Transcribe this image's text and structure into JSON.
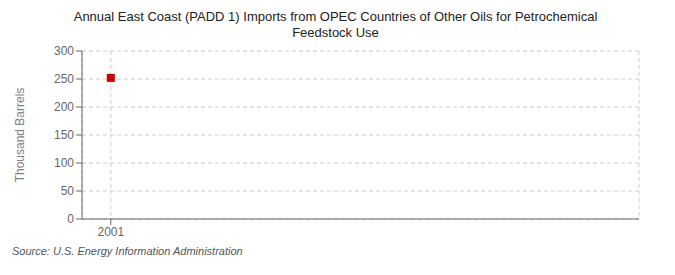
{
  "chart_data": {
    "type": "scatter",
    "title": "Annual East Coast (PADD 1) Imports from OPEC Countries of Other Oils for Petrochemical\nFeedstock Use",
    "ylabel": "Thousand Barrels",
    "annotations": [
      "Source: U.S. Energy Information Administration"
    ],
    "x": [
      2001
    ],
    "values": [
      252
    ],
    "color": "#cc0000",
    "marker": "square",
    "xlim": [
      1999.8,
      2023
    ],
    "xticks": [
      2001
    ],
    "ylim": [
      0,
      300
    ],
    "yticks": [
      0,
      50,
      100,
      150,
      200,
      250,
      300
    ],
    "grid": true
  }
}
